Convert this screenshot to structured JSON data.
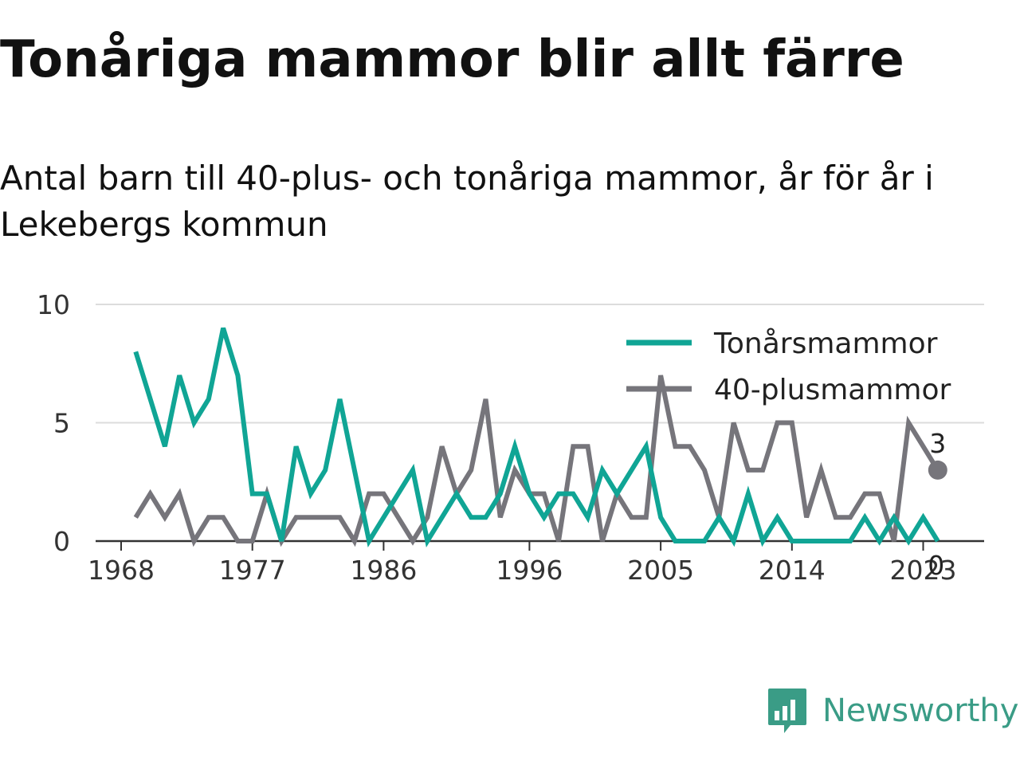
{
  "title": "Tonåriga mammor blir allt färre",
  "subtitle": "Antal barn till 40-plus- och tonåriga mammor, år för år i Lekebergs kommun",
  "brand": "Newsworthy",
  "chart_data": {
    "type": "line",
    "title": "Tonåriga mammor blir allt färre",
    "subtitle": "Antal barn till 40-plus- och tonåriga mammor, år för år i Lekebergs kommun",
    "x": [
      1969,
      1970,
      1971,
      1972,
      1973,
      1974,
      1975,
      1976,
      1977,
      1978,
      1979,
      1980,
      1981,
      1982,
      1983,
      1984,
      1985,
      1986,
      1987,
      1988,
      1989,
      1990,
      1991,
      1992,
      1993,
      1994,
      1995,
      1996,
      1997,
      1998,
      1999,
      2000,
      2001,
      2002,
      2003,
      2004,
      2005,
      2006,
      2007,
      2008,
      2009,
      2010,
      2011,
      2012,
      2013,
      2014,
      2015,
      2016,
      2017,
      2018,
      2019,
      2020,
      2021,
      2022,
      2023,
      2024
    ],
    "x_ticks": [
      "1968",
      "1977",
      "1986",
      "1996",
      "2005",
      "2014",
      "2023"
    ],
    "y_ticks": [
      "0",
      "5",
      "10"
    ],
    "ylim": [
      0,
      10
    ],
    "grid": true,
    "legend_position": "top-right",
    "series": [
      {
        "name": "Tonårsmammor",
        "color": "#10a595",
        "values": [
          8,
          6,
          4,
          7,
          5,
          6,
          9,
          7,
          2,
          2,
          0,
          4,
          2,
          3,
          6,
          3,
          0,
          1,
          2,
          3,
          0,
          1,
          2,
          1,
          1,
          2,
          4,
          2,
          1,
          2,
          2,
          1,
          3,
          2,
          3,
          4,
          1,
          0,
          0,
          0,
          1,
          0,
          2,
          0,
          1,
          0,
          0,
          0,
          0,
          0,
          1,
          0,
          1,
          0,
          1,
          0
        ],
        "end_label": "0"
      },
      {
        "name": "40-plusmammor",
        "color": "#76757b",
        "values": [
          1,
          2,
          1,
          2,
          0,
          1,
          1,
          0,
          0,
          2,
          0,
          1,
          1,
          1,
          1,
          0,
          2,
          2,
          1,
          0,
          1,
          4,
          2,
          3,
          6,
          1,
          3,
          2,
          2,
          0,
          4,
          4,
          0,
          2,
          1,
          1,
          7,
          4,
          4,
          3,
          1,
          5,
          3,
          3,
          5,
          5,
          1,
          3,
          1,
          1,
          2,
          2,
          0,
          5,
          4,
          3
        ],
        "end_label": "3"
      }
    ]
  }
}
